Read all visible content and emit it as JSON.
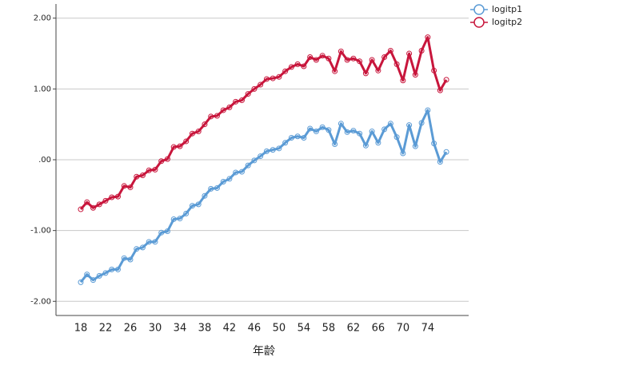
{
  "chart_data": {
    "type": "line",
    "x_label": "年龄",
    "x": [
      18,
      19,
      20,
      21,
      22,
      23,
      24,
      25,
      26,
      27,
      28,
      29,
      30,
      31,
      32,
      33,
      34,
      35,
      36,
      37,
      38,
      39,
      40,
      41,
      42,
      43,
      44,
      45,
      46,
      47,
      48,
      49,
      50,
      51,
      52,
      53,
      54,
      55,
      56,
      57,
      58,
      59,
      60,
      61,
      62,
      63,
      64,
      65,
      66,
      67,
      68,
      69,
      70,
      71,
      72,
      73,
      74,
      75,
      76,
      77
    ],
    "series": [
      {
        "name": "logitp1",
        "color": "#5b9bd5",
        "values": [
          -1.73,
          -1.62,
          -1.7,
          -1.64,
          -1.6,
          -1.55,
          -1.55,
          -1.39,
          -1.41,
          -1.26,
          -1.24,
          -1.16,
          -1.16,
          -1.03,
          -1.01,
          -0.84,
          -0.83,
          -0.76,
          -0.65,
          -0.63,
          -0.51,
          -0.41,
          -0.4,
          -0.31,
          -0.27,
          -0.18,
          -0.17,
          -0.08,
          -0.01,
          0.05,
          0.12,
          0.14,
          0.16,
          0.24,
          0.31,
          0.33,
          0.31,
          0.44,
          0.4,
          0.46,
          0.42,
          0.22,
          0.51,
          0.39,
          0.41,
          0.37,
          0.2,
          0.4,
          0.24,
          0.43,
          0.51,
          0.32,
          0.09,
          0.49,
          0.19,
          0.52,
          0.7,
          0.23,
          -0.03,
          0.11
        ]
      },
      {
        "name": "logitp2",
        "color": "#c8163c",
        "values": [
          -0.7,
          -0.6,
          -0.68,
          -0.63,
          -0.58,
          -0.53,
          -0.52,
          -0.37,
          -0.39,
          -0.24,
          -0.22,
          -0.15,
          -0.14,
          -0.02,
          0.01,
          0.18,
          0.19,
          0.26,
          0.37,
          0.4,
          0.5,
          0.61,
          0.62,
          0.7,
          0.74,
          0.82,
          0.84,
          0.93,
          1.0,
          1.06,
          1.14,
          1.15,
          1.17,
          1.25,
          1.31,
          1.35,
          1.32,
          1.45,
          1.41,
          1.47,
          1.43,
          1.25,
          1.53,
          1.41,
          1.43,
          1.39,
          1.22,
          1.41,
          1.26,
          1.45,
          1.54,
          1.35,
          1.12,
          1.5,
          1.2,
          1.54,
          1.73,
          1.26,
          0.98,
          1.13
        ]
      }
    ],
    "xlim": [
      14,
      80.6
    ],
    "xticks": [
      18,
      22,
      26,
      30,
      34,
      38,
      42,
      46,
      50,
      54,
      58,
      62,
      66,
      70,
      74
    ],
    "ylim": [
      -2.2,
      2.2
    ],
    "yticks": [
      {
        "value": 2,
        "label": "2.00"
      },
      {
        "value": 1,
        "label": "1.00"
      },
      {
        "value": 0,
        "label": ".00"
      },
      {
        "value": -1,
        "label": "-1.00"
      },
      {
        "value": -2,
        "label": "-2.00"
      }
    ],
    "grid": true,
    "legend": "top-right"
  }
}
